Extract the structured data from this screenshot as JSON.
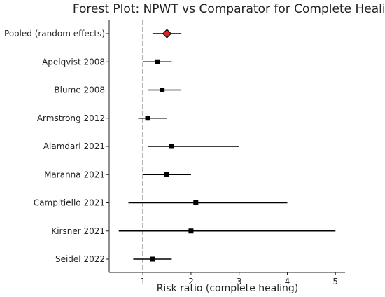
{
  "chart_data": {
    "type": "scatter",
    "title": "Forest Plot: NPWT vs Comparator for Complete Healing",
    "xlabel": "Risk ratio (complete healing)",
    "ylabel": "",
    "xlim": [
      0.3,
      5.2
    ],
    "xticks": [
      1,
      2,
      3,
      4,
      5
    ],
    "xtick_labels": [
      "1",
      "2",
      "3",
      "4",
      "5"
    ],
    "reference_line": 1,
    "grid": false,
    "studies": [
      {
        "label": "Pooled (random effects)",
        "rr": 1.5,
        "ci_low": 1.2,
        "ci_high": 1.8,
        "marker": "diamond"
      },
      {
        "label": "Apelqvist 2008",
        "rr": 1.3,
        "ci_low": 1.0,
        "ci_high": 1.6,
        "marker": "square"
      },
      {
        "label": "Blume 2008",
        "rr": 1.4,
        "ci_low": 1.1,
        "ci_high": 1.8,
        "marker": "square"
      },
      {
        "label": "Armstrong 2012",
        "rr": 1.1,
        "ci_low": 0.9,
        "ci_high": 1.5,
        "marker": "square"
      },
      {
        "label": "Alamdari 2021",
        "rr": 1.6,
        "ci_low": 1.1,
        "ci_high": 3.0,
        "marker": "square"
      },
      {
        "label": "Maranna 2021",
        "rr": 1.5,
        "ci_low": 1.0,
        "ci_high": 2.0,
        "marker": "square"
      },
      {
        "label": "Campitiello 2021",
        "rr": 2.1,
        "ci_low": 0.7,
        "ci_high": 4.0,
        "marker": "square"
      },
      {
        "label": "Kirsner 2021",
        "rr": 2.0,
        "ci_low": 0.5,
        "ci_high": 5.0,
        "marker": "square"
      },
      {
        "label": "Seidel 2022",
        "rr": 1.2,
        "ci_low": 0.8,
        "ci_high": 1.6,
        "marker": "square"
      }
    ],
    "colors": {
      "line": "#000000",
      "square": "#000000",
      "diamond": "#d62728",
      "reference": "#888888",
      "axis": "#222222"
    }
  }
}
